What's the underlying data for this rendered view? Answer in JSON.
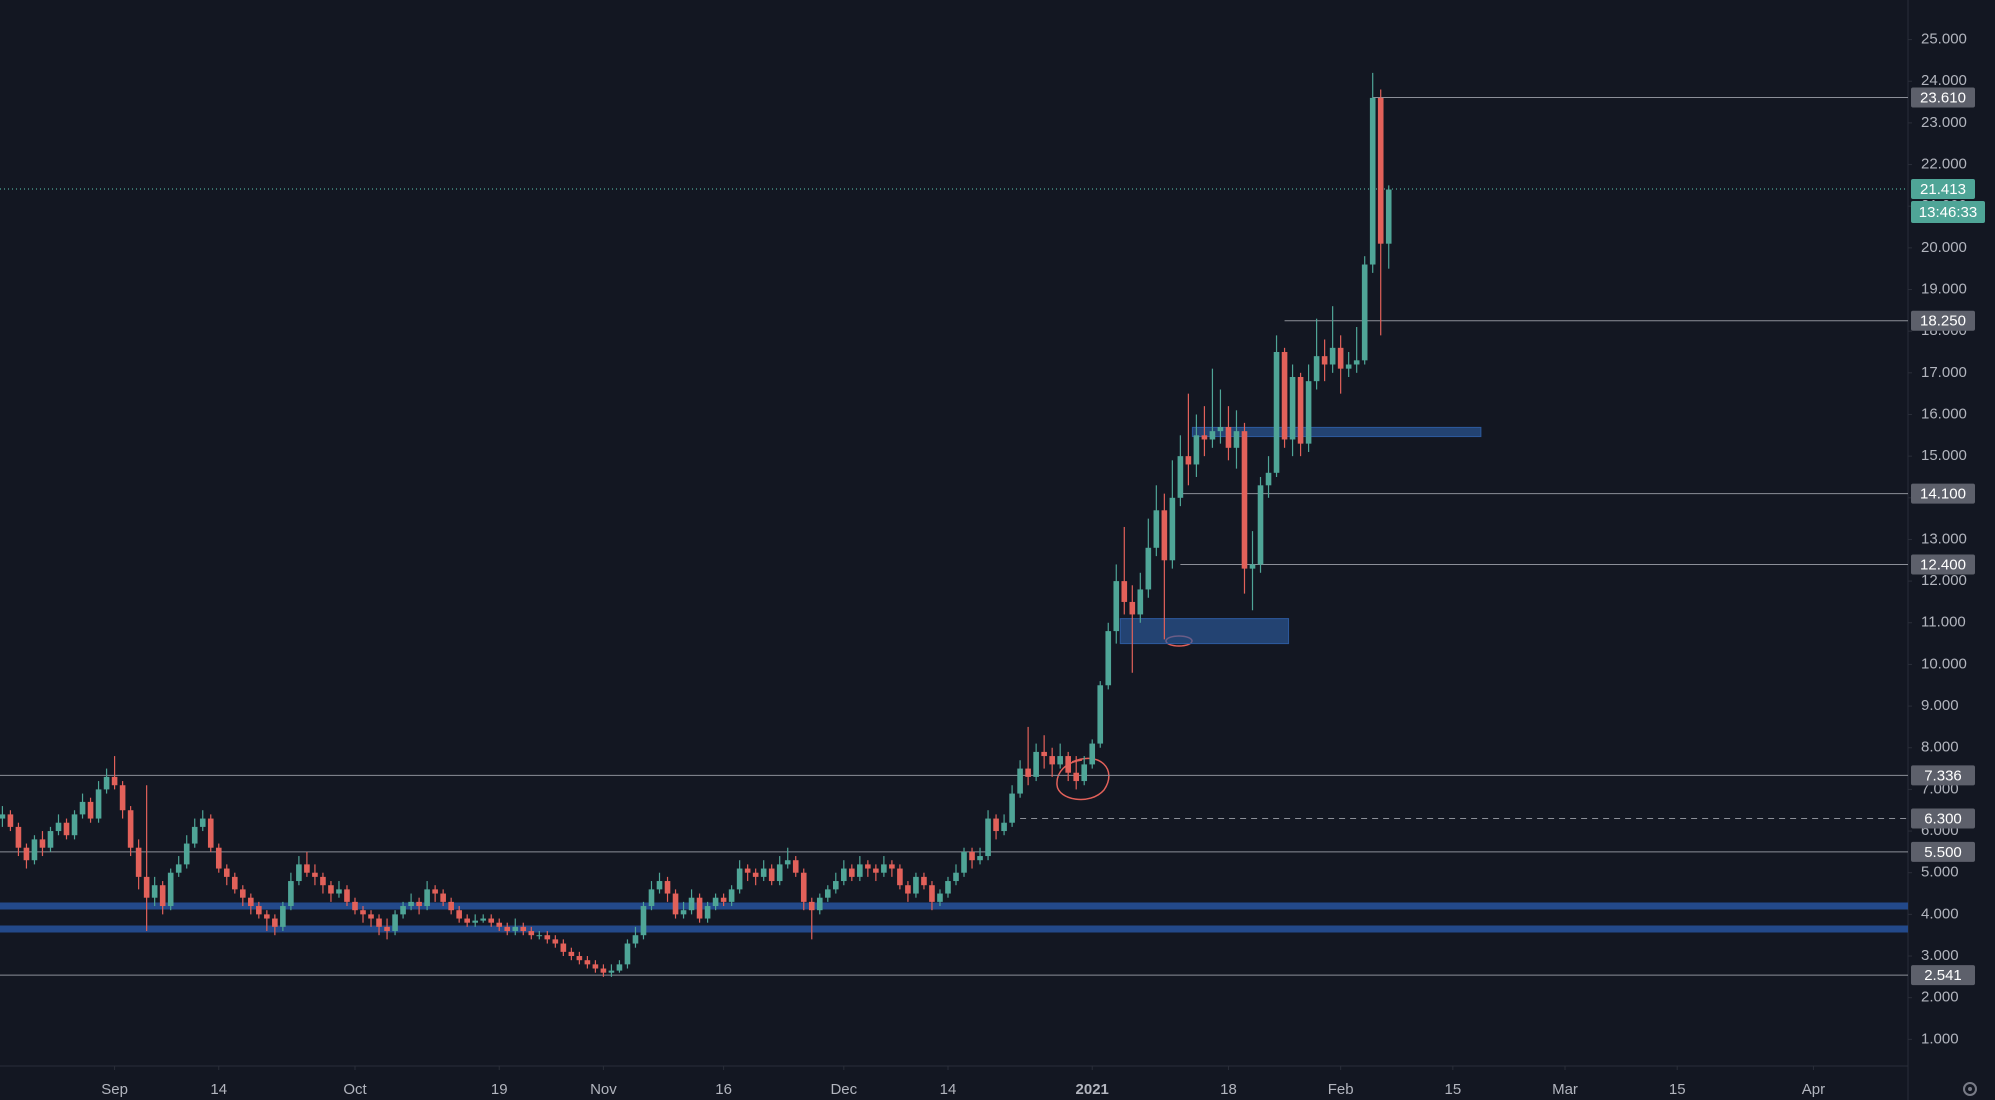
{
  "chart_data": {
    "type": "candlestick",
    "up_color": "#4fa597",
    "down_color": "#e2615a",
    "x": [
      0,
      1,
      2,
      3,
      4,
      5,
      6,
      7,
      8,
      9,
      10,
      11,
      12,
      13,
      14,
      15,
      16,
      17,
      18,
      19,
      20,
      21,
      22,
      23,
      24,
      25,
      26,
      27,
      28,
      29,
      30,
      31,
      32,
      33,
      34,
      35,
      36,
      37,
      38,
      39,
      40,
      41,
      42,
      43,
      44,
      45,
      46,
      47,
      48,
      49,
      50,
      51,
      52,
      53,
      54,
      55,
      56,
      57,
      58,
      59,
      60,
      61,
      62,
      63,
      64,
      65,
      66,
      67,
      68,
      69,
      70,
      71,
      72,
      73,
      74,
      75,
      76,
      77,
      78,
      79,
      80,
      81,
      82,
      83,
      84,
      85,
      86,
      87,
      88,
      89,
      90,
      91,
      92,
      93,
      94,
      95,
      96,
      97,
      98,
      99,
      100,
      101,
      102,
      103,
      104,
      105,
      106,
      107,
      108,
      109,
      110,
      111,
      112,
      113,
      114,
      115,
      116,
      117,
      118,
      119,
      120,
      121,
      122,
      123,
      124,
      125,
      126,
      127,
      128,
      129,
      130,
      131,
      132,
      133,
      134,
      135,
      136,
      137,
      138,
      139,
      140,
      141,
      142,
      143,
      144,
      145,
      146,
      147,
      148,
      149,
      150,
      151,
      152,
      153,
      154,
      155,
      156,
      157,
      158,
      159,
      160,
      161,
      162,
      163,
      164,
      165,
      166,
      167,
      168,
      169,
      170,
      171,
      172,
      173
    ],
    "open": [
      6.3,
      6.4,
      6.1,
      5.6,
      5.3,
      5.8,
      5.6,
      6.0,
      6.2,
      5.9,
      6.4,
      6.7,
      6.3,
      7.0,
      7.3,
      7.1,
      6.5,
      5.6,
      4.9,
      4.4,
      4.7,
      4.2,
      5.0,
      5.2,
      5.7,
      6.1,
      6.3,
      5.6,
      5.1,
      4.9,
      4.6,
      4.4,
      4.2,
      4.0,
      3.9,
      3.7,
      4.2,
      4.8,
      5.2,
      5.0,
      4.9,
      4.7,
      4.5,
      4.6,
      4.3,
      4.1,
      4.0,
      3.9,
      3.7,
      3.6,
      4.0,
      4.2,
      4.3,
      4.2,
      4.6,
      4.5,
      4.3,
      4.1,
      3.9,
      3.8,
      3.85,
      3.9,
      3.8,
      3.7,
      3.6,
      3.7,
      3.6,
      3.5,
      3.5,
      3.4,
      3.3,
      3.1,
      3.0,
      2.9,
      2.8,
      2.7,
      2.6,
      2.65,
      2.8,
      3.3,
      3.5,
      4.2,
      4.6,
      4.8,
      4.5,
      4.0,
      4.1,
      4.4,
      3.9,
      4.2,
      4.4,
      4.3,
      4.6,
      5.1,
      5.0,
      4.9,
      5.1,
      4.8,
      5.2,
      5.3,
      5.0,
      4.3,
      4.1,
      4.4,
      4.6,
      4.8,
      5.1,
      4.9,
      5.2,
      5.1,
      5.0,
      5.2,
      5.1,
      4.7,
      4.5,
      4.9,
      4.7,
      4.3,
      4.5,
      4.8,
      5.0,
      5.5,
      5.3,
      5.4,
      6.3,
      6.0,
      6.2,
      6.9,
      7.5,
      7.3,
      7.9,
      7.8,
      7.6,
      7.8,
      7.4,
      7.2,
      7.6,
      8.1,
      9.5,
      10.8,
      12.0,
      11.5,
      11.2,
      11.8,
      12.8,
      13.7,
      12.5,
      14.0,
      15.0,
      14.8,
      15.5,
      15.4,
      15.6,
      15.7,
      15.2,
      15.6,
      12.3,
      12.4,
      14.3,
      14.6,
      17.5,
      15.4,
      16.9,
      15.3,
      16.8,
      17.4,
      17.2,
      17.6,
      17.1,
      17.2,
      17.3,
      19.6,
      23.6,
      20.1
    ],
    "high": [
      6.6,
      6.5,
      6.2,
      5.7,
      5.9,
      6.0,
      6.1,
      6.4,
      6.3,
      6.5,
      6.9,
      6.8,
      7.2,
      7.5,
      7.8,
      7.2,
      6.6,
      5.8,
      7.1,
      4.9,
      4.8,
      5.1,
      5.4,
      5.9,
      6.3,
      6.5,
      6.4,
      5.7,
      5.2,
      5.0,
      4.7,
      4.5,
      4.3,
      4.1,
      4.0,
      4.3,
      5.0,
      5.4,
      5.5,
      5.2,
      5.0,
      4.8,
      4.8,
      4.7,
      4.4,
      4.2,
      4.1,
      4.0,
      3.9,
      4.1,
      4.3,
      4.5,
      4.4,
      4.8,
      4.7,
      4.6,
      4.4,
      4.2,
      4.0,
      4.0,
      4.0,
      4.0,
      3.9,
      3.8,
      3.9,
      3.8,
      3.7,
      3.6,
      3.6,
      3.5,
      3.4,
      3.2,
      3.1,
      3.0,
      2.9,
      2.8,
      2.8,
      2.9,
      3.4,
      3.7,
      4.3,
      4.8,
      5.0,
      4.9,
      4.6,
      4.3,
      4.6,
      4.5,
      4.3,
      4.5,
      4.5,
      4.7,
      5.3,
      5.2,
      5.1,
      5.3,
      5.2,
      5.4,
      5.6,
      5.4,
      5.1,
      4.4,
      4.5,
      4.7,
      5.0,
      5.3,
      5.2,
      5.4,
      5.3,
      5.2,
      5.4,
      5.3,
      5.2,
      4.8,
      5.0,
      5.0,
      4.8,
      4.6,
      4.9,
      5.2,
      5.6,
      5.6,
      5.6,
      6.5,
      6.4,
      6.4,
      7.1,
      7.7,
      8.5,
      8.1,
      8.3,
      8.0,
      8.1,
      7.9,
      7.8,
      7.8,
      8.2,
      9.6,
      11.0,
      12.4,
      13.3,
      11.9,
      12.2,
      13.5,
      14.3,
      14.1,
      14.9,
      15.5,
      16.5,
      16.0,
      16.2,
      17.1,
      16.6,
      16.2,
      16.1,
      15.8,
      13.2,
      14.5,
      15.0,
      17.9,
      17.6,
      17.2,
      17.0,
      17.2,
      18.3,
      17.8,
      18.6,
      17.9,
      17.5,
      18.1,
      19.8,
      24.2,
      23.8,
      21.5
    ],
    "low": [
      6.1,
      6.0,
      5.4,
      5.1,
      5.2,
      5.4,
      5.5,
      5.9,
      5.8,
      5.8,
      6.3,
      6.2,
      6.2,
      6.9,
      7.0,
      6.3,
      5.4,
      4.6,
      3.6,
      4.2,
      4.0,
      4.1,
      4.9,
      5.1,
      5.6,
      6.0,
      5.5,
      5.0,
      4.7,
      4.5,
      4.2,
      4.0,
      3.9,
      3.6,
      3.5,
      3.6,
      4.1,
      4.7,
      4.9,
      4.7,
      4.5,
      4.3,
      4.4,
      4.2,
      4.0,
      3.8,
      3.7,
      3.5,
      3.4,
      3.5,
      3.9,
      4.1,
      4.0,
      4.1,
      4.3,
      4.2,
      4.0,
      3.8,
      3.7,
      3.7,
      3.8,
      3.7,
      3.6,
      3.5,
      3.5,
      3.5,
      3.4,
      3.4,
      3.3,
      3.2,
      3.0,
      2.9,
      2.8,
      2.7,
      2.6,
      2.5,
      2.5,
      2.6,
      2.7,
      3.2,
      3.4,
      4.1,
      4.5,
      4.3,
      3.9,
      3.9,
      4.0,
      3.8,
      3.8,
      4.1,
      4.2,
      4.2,
      4.5,
      4.8,
      4.7,
      4.8,
      4.7,
      4.7,
      5.1,
      4.9,
      4.1,
      3.4,
      4.0,
      4.3,
      4.5,
      4.7,
      4.8,
      4.8,
      4.9,
      4.8,
      4.9,
      4.9,
      4.6,
      4.3,
      4.4,
      4.6,
      4.1,
      4.2,
      4.4,
      4.7,
      4.9,
      5.1,
      5.2,
      5.3,
      5.8,
      5.9,
      6.1,
      6.8,
      7.1,
      7.2,
      7.5,
      7.3,
      7.5,
      7.2,
      7.0,
      7.1,
      7.5,
      8.0,
      9.4,
      10.5,
      11.2,
      9.8,
      11.0,
      11.6,
      12.6,
      10.6,
      12.3,
      13.8,
      14.3,
      14.5,
      15.0,
      15.2,
      15.3,
      14.9,
      14.7,
      11.7,
      11.3,
      12.2,
      14.0,
      14.5,
      15.2,
      15.0,
      15.0,
      15.1,
      16.6,
      16.8,
      17.0,
      16.5,
      16.9,
      17.0,
      17.2,
      19.4,
      17.9,
      19.5
    ],
    "close": [
      6.4,
      6.1,
      5.6,
      5.3,
      5.8,
      5.6,
      6.0,
      6.2,
      5.9,
      6.4,
      6.7,
      6.3,
      7.0,
      7.3,
      7.1,
      6.5,
      5.6,
      4.9,
      4.4,
      4.7,
      4.2,
      5.0,
      5.2,
      5.7,
      6.1,
      6.3,
      5.6,
      5.1,
      4.9,
      4.6,
      4.4,
      4.2,
      4.0,
      3.9,
      3.7,
      4.2,
      4.8,
      5.2,
      5.0,
      4.9,
      4.7,
      4.5,
      4.6,
      4.3,
      4.1,
      4.0,
      3.9,
      3.7,
      3.6,
      4.0,
      4.2,
      4.3,
      4.2,
      4.6,
      4.5,
      4.3,
      4.1,
      3.9,
      3.8,
      3.85,
      3.9,
      3.8,
      3.7,
      3.6,
      3.7,
      3.6,
      3.5,
      3.5,
      3.4,
      3.3,
      3.1,
      3.0,
      2.9,
      2.8,
      2.7,
      2.6,
      2.65,
      2.8,
      3.3,
      3.5,
      4.2,
      4.6,
      4.8,
      4.5,
      4.0,
      4.1,
      4.4,
      3.9,
      4.2,
      4.4,
      4.3,
      4.6,
      5.1,
      5.0,
      4.9,
      5.1,
      4.8,
      5.2,
      5.3,
      5.0,
      4.3,
      4.1,
      4.4,
      4.6,
      4.8,
      5.1,
      4.9,
      5.2,
      5.1,
      5.0,
      5.2,
      5.1,
      4.7,
      4.5,
      4.9,
      4.7,
      4.3,
      4.5,
      4.8,
      5.0,
      5.5,
      5.3,
      5.4,
      6.3,
      6.0,
      6.2,
      6.9,
      7.5,
      7.3,
      7.9,
      7.8,
      7.6,
      7.8,
      7.4,
      7.2,
      7.6,
      8.1,
      9.5,
      10.8,
      12.0,
      11.5,
      11.2,
      11.8,
      12.8,
      13.7,
      12.5,
      14.0,
      15.0,
      14.8,
      15.5,
      15.4,
      15.6,
      15.7,
      15.2,
      15.6,
      12.3,
      12.4,
      14.3,
      14.6,
      17.5,
      15.4,
      16.9,
      15.3,
      16.8,
      17.4,
      17.2,
      17.6,
      17.1,
      17.2,
      17.3,
      19.6,
      23.6,
      20.1,
      21.4
    ],
    "xlim": [
      -0.3,
      237.8
    ],
    "xticks": [
      {
        "value": 14,
        "label": "Sep"
      },
      {
        "value": 27,
        "label": "14"
      },
      {
        "value": 44,
        "label": "Oct"
      },
      {
        "value": 62,
        "label": "19"
      },
      {
        "value": 75,
        "label": "Nov"
      },
      {
        "value": 90,
        "label": "16"
      },
      {
        "value": 105,
        "label": "Dec"
      },
      {
        "value": 118,
        "label": "14"
      },
      {
        "value": 136,
        "label": "2021"
      },
      {
        "value": 153,
        "label": "18"
      },
      {
        "value": 167,
        "label": "Feb"
      },
      {
        "value": 181,
        "label": "15"
      },
      {
        "value": 195,
        "label": "Mar"
      },
      {
        "value": 209,
        "label": "15"
      },
      {
        "value": 226,
        "label": "Apr"
      }
    ],
    "ylim": [
      0.36,
      25.95
    ],
    "yticks": [
      {
        "value": 1,
        "label": "1.000"
      },
      {
        "value": 2,
        "label": "2.000"
      },
      {
        "value": 3,
        "label": "3.000"
      },
      {
        "value": 4,
        "label": "4.000"
      },
      {
        "value": 5,
        "label": "5.000"
      },
      {
        "value": 6,
        "label": "6.000"
      },
      {
        "value": 7,
        "label": "7.000"
      },
      {
        "value": 8,
        "label": "8.000"
      },
      {
        "value": 9,
        "label": "9.000"
      },
      {
        "value": 10,
        "label": "10.000"
      },
      {
        "value": 11,
        "label": "11.000"
      },
      {
        "value": 12,
        "label": "12.000"
      },
      {
        "value": 13,
        "label": "13.000"
      },
      {
        "value": 14,
        "label": "14.000"
      },
      {
        "value": 15,
        "label": "15.000"
      },
      {
        "value": 16,
        "label": "16.000"
      },
      {
        "value": 17,
        "label": "17.000"
      },
      {
        "value": 18,
        "label": "18.000"
      },
      {
        "value": 19,
        "label": "19.000"
      },
      {
        "value": 20,
        "label": "20.000"
      },
      {
        "value": 21,
        "label": "21.000"
      },
      {
        "value": 22,
        "label": "22.000"
      },
      {
        "value": 23,
        "label": "23.000"
      },
      {
        "value": 24,
        "label": "24.000"
      },
      {
        "value": 25,
        "label": "25.000"
      }
    ],
    "level_color": "#8c8f98",
    "levels": [
      {
        "value": 23.61,
        "label": "23.610",
        "x_start": 171
      },
      {
        "value": 18.25,
        "label": "18.250",
        "x_start": 160
      },
      {
        "value": 14.1,
        "label": "14.100",
        "x_start": 147
      },
      {
        "value": 12.4,
        "label": "12.400",
        "x_start": 147
      },
      {
        "value": 7.336,
        "label": "7.336"
      },
      {
        "value": 6.3,
        "label": "6.300",
        "x_start": 127,
        "dashed": true
      },
      {
        "value": 5.5,
        "label": "5.500"
      },
      {
        "value": 2.541,
        "label": "2.541"
      }
    ],
    "current_price": {
      "value": 21.413,
      "label": "21.413",
      "countdown": "13:46:33",
      "color": "#4fa597"
    },
    "band_color": "#23498a",
    "bands": [
      4.2,
      3.65
    ],
    "zone_color": "#2d5a9e",
    "zones": [
      {
        "x": [
          139.5,
          160.5
        ],
        "y": [
          10.5,
          11.1
        ]
      },
      {
        "x": [
          148.5,
          184.5
        ],
        "y": [
          15.47,
          15.69
        ]
      }
    ]
  }
}
